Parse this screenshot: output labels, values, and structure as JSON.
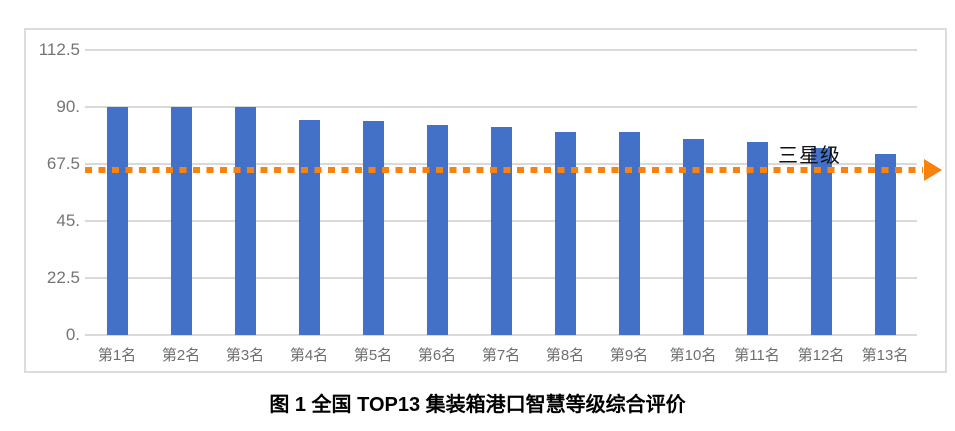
{
  "caption": "图 1 全国 TOP13 集装箱港口智慧等级综合评价",
  "chart_data": {
    "type": "bar",
    "title": "",
    "categories": [
      "第1名",
      "第2名",
      "第3名",
      "第4名",
      "第5名",
      "第6名",
      "第7名",
      "第8名",
      "第9名",
      "第10名",
      "第11名",
      "第12名",
      "第13名"
    ],
    "values": [
      90,
      90,
      90,
      85,
      84.5,
      83,
      82,
      80,
      80,
      77.5,
      76,
      74,
      71.5
    ],
    "xlabel": "",
    "ylabel": "",
    "ylim": [
      0,
      112.5
    ],
    "y_ticks": [
      "112.5",
      "90.",
      "67.5",
      "45.",
      "22.5",
      "0."
    ],
    "y_tick_values": [
      112.5,
      90,
      67.5,
      45,
      22.5,
      0
    ],
    "grid": true,
    "legend": "none",
    "bar_color": "#4471c8",
    "gridline_color": "#d9d9d9",
    "reference_line": {
      "value": 65,
      "label": "三星级",
      "color": "#f7820d",
      "style": "dotted",
      "arrow": "right"
    }
  }
}
